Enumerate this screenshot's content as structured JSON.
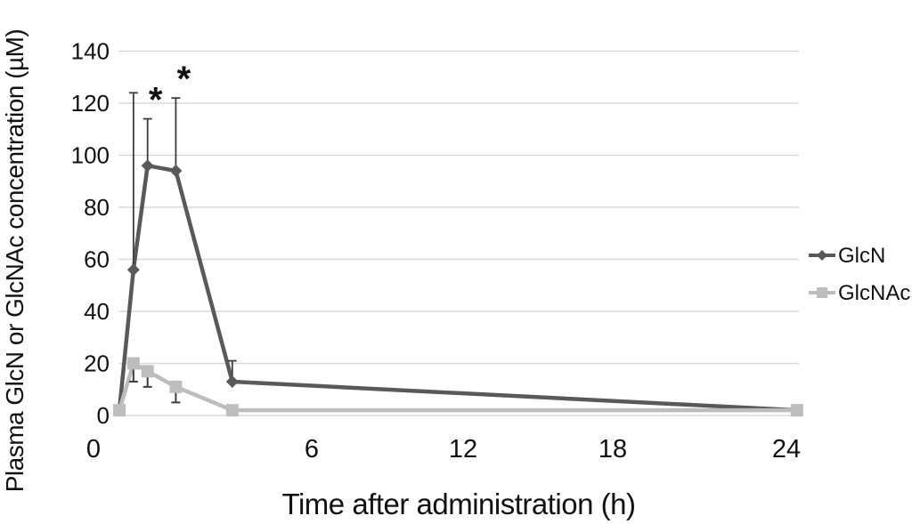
{
  "figure": {
    "x_axis_title": "Time after administration (h)",
    "y_axis_title": "Plasma GlcN or GlcNAc concentration (µM)"
  },
  "chart_data": {
    "type": "line",
    "title": "",
    "xlabel": "Time after administration (h)",
    "ylabel": "Plasma GlcN or GlcNAc concentration (µM)",
    "xlim": [
      0,
      24
    ],
    "ylim": [
      0,
      140
    ],
    "x_ticks": [
      0,
      6,
      12,
      18,
      24
    ],
    "y_ticks": [
      0,
      20,
      40,
      60,
      80,
      100,
      120,
      140
    ],
    "grid": "horizontal-only",
    "legend_position": "right-middle",
    "colors": {
      "glcn": "#595959",
      "glcnac": "#bdbdbd",
      "gridline": "#d9d9d9",
      "error_bar": "#3d3d3d",
      "text": "#111111"
    },
    "series": [
      {
        "name": "GlcN",
        "color": "#595959",
        "marker": "diamond",
        "x": [
          0,
          0.5,
          1,
          2,
          4,
          24
        ],
        "y": [
          2,
          56,
          96,
          94,
          13,
          2
        ],
        "error_up": [
          null,
          68,
          18,
          28,
          8,
          null
        ]
      },
      {
        "name": "GlcNAc",
        "color": "#bdbdbd",
        "marker": "square",
        "x": [
          0,
          0.5,
          1,
          2,
          4,
          24
        ],
        "y": [
          2,
          20,
          17,
          11,
          2,
          2
        ],
        "error_down": [
          null,
          7,
          6,
          6,
          null,
          null
        ]
      }
    ],
    "annotations": [
      {
        "text": "*",
        "series": "GlcN",
        "x": 1,
        "y": 114
      },
      {
        "text": "*",
        "series": "GlcN",
        "x": 2,
        "y": 122
      }
    ]
  }
}
